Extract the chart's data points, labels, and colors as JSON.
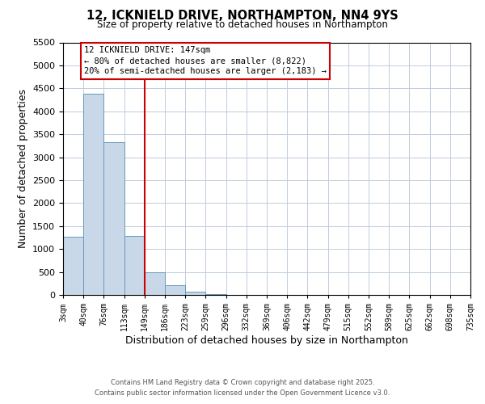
{
  "title": "12, ICKNIELD DRIVE, NORTHAMPTON, NN4 9YS",
  "subtitle": "Size of property relative to detached houses in Northampton",
  "xlabel": "Distribution of detached houses by size in Northampton",
  "ylabel": "Number of detached properties",
  "bar_edges": [
    3,
    40,
    76,
    113,
    149,
    186,
    223,
    259,
    296,
    332,
    369,
    406,
    442,
    479,
    515,
    552,
    589,
    625,
    662,
    698,
    735
  ],
  "bar_heights": [
    1270,
    4380,
    3320,
    1290,
    500,
    220,
    70,
    10,
    0,
    0,
    0,
    0,
    0,
    0,
    0,
    0,
    0,
    0,
    0,
    0
  ],
  "bar_color": "#c8d8e8",
  "bar_edge_color": "#6699bb",
  "property_line_x": 149,
  "property_line_color": "#cc0000",
  "ylim": [
    0,
    5500
  ],
  "yticks": [
    0,
    500,
    1000,
    1500,
    2000,
    2500,
    3000,
    3500,
    4000,
    4500,
    5000,
    5500
  ],
  "annotation_title": "12 ICKNIELD DRIVE: 147sqm",
  "annotation_line1": "← 80% of detached houses are smaller (8,822)",
  "annotation_line2": "20% of semi-detached houses are larger (2,183) →",
  "annotation_box_color": "#cc0000",
  "footer_line1": "Contains HM Land Registry data © Crown copyright and database right 2025.",
  "footer_line2": "Contains public sector information licensed under the Open Government Licence v3.0.",
  "tick_labels": [
    "3sqm",
    "40sqm",
    "76sqm",
    "113sqm",
    "149sqm",
    "186sqm",
    "223sqm",
    "259sqm",
    "296sqm",
    "332sqm",
    "369sqm",
    "406sqm",
    "442sqm",
    "479sqm",
    "515sqm",
    "552sqm",
    "589sqm",
    "625sqm",
    "662sqm",
    "698sqm",
    "735sqm"
  ],
  "background_color": "#ffffff",
  "grid_color": "#c0ccdd",
  "figsize": [
    6.0,
    5.0
  ],
  "dpi": 100
}
